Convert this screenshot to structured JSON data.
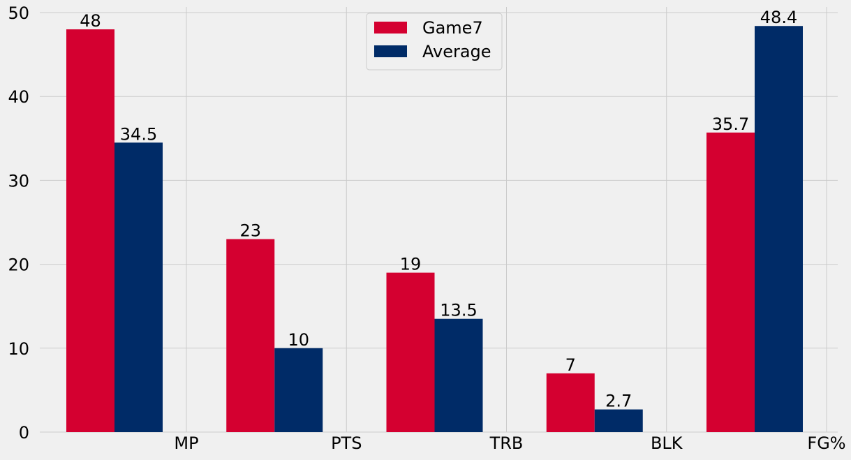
{
  "chart_data": {
    "type": "bar",
    "title": "",
    "xlabel": "",
    "ylabel": "",
    "categories": [
      "MP",
      "PTS",
      "TRB",
      "BLK",
      "FG%"
    ],
    "series": [
      {
        "name": "Game7",
        "color": "#d40030",
        "values": [
          48,
          23,
          19,
          7,
          35.7
        ],
        "labels": [
          "48",
          "23",
          "19",
          "7",
          "35.7"
        ]
      },
      {
        "name": "Average",
        "color": "#002b67",
        "values": [
          34.5,
          10,
          13.5,
          2.7,
          48.4
        ],
        "labels": [
          "34.5",
          "10",
          "13.5",
          "2.7",
          "48.4"
        ]
      }
    ],
    "ylim": [
      0,
      50
    ],
    "yticks": [
      0,
      10,
      20,
      30,
      40,
      50
    ],
    "ytick_labels": [
      "0",
      "10",
      "20",
      "30",
      "40",
      "50"
    ],
    "grid": true,
    "legend_position": "top-center",
    "background": "#f0f0f0",
    "grid_color": "#cbcbcb"
  }
}
